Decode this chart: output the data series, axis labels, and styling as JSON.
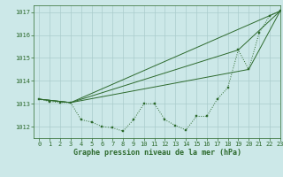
{
  "title": "Graphe pression niveau de la mer (hPa)",
  "background_color": "#cce8e8",
  "grid_color": "#aacccc",
  "line_color": "#2d6a2d",
  "marker_color": "#2d6a2d",
  "xlim": [
    -0.5,
    23
  ],
  "ylim": [
    1011.5,
    1017.3
  ],
  "yticks": [
    1012,
    1013,
    1014,
    1015,
    1016,
    1017
  ],
  "xticks": [
    0,
    1,
    2,
    3,
    4,
    5,
    6,
    7,
    8,
    9,
    10,
    11,
    12,
    13,
    14,
    15,
    16,
    17,
    18,
    19,
    20,
    21,
    22,
    23
  ],
  "hours": [
    0,
    1,
    2,
    3,
    4,
    5,
    6,
    7,
    8,
    9,
    10,
    11,
    12,
    13,
    14,
    15,
    16,
    17,
    18,
    19,
    20,
    21,
    22,
    23
  ],
  "series1": [
    1013.2,
    1013.1,
    1013.05,
    1013.05,
    1012.3,
    1012.2,
    1012.0,
    1011.95,
    1011.8,
    1012.3,
    1013.0,
    1013.0,
    1012.3,
    1012.05,
    1011.85,
    1012.45,
    1012.45,
    1013.2,
    1013.7,
    1015.35,
    1014.5,
    1016.1,
    1016.85,
    1017.05
  ],
  "series2_x": [
    0,
    3,
    23
  ],
  "series2_y": [
    1013.2,
    1013.05,
    1017.05
  ],
  "series3_x": [
    0,
    3,
    20,
    23
  ],
  "series3_y": [
    1013.2,
    1013.05,
    1014.5,
    1017.05
  ],
  "series4_x": [
    0,
    3,
    19,
    23
  ],
  "series4_y": [
    1013.2,
    1013.05,
    1015.35,
    1017.05
  ]
}
